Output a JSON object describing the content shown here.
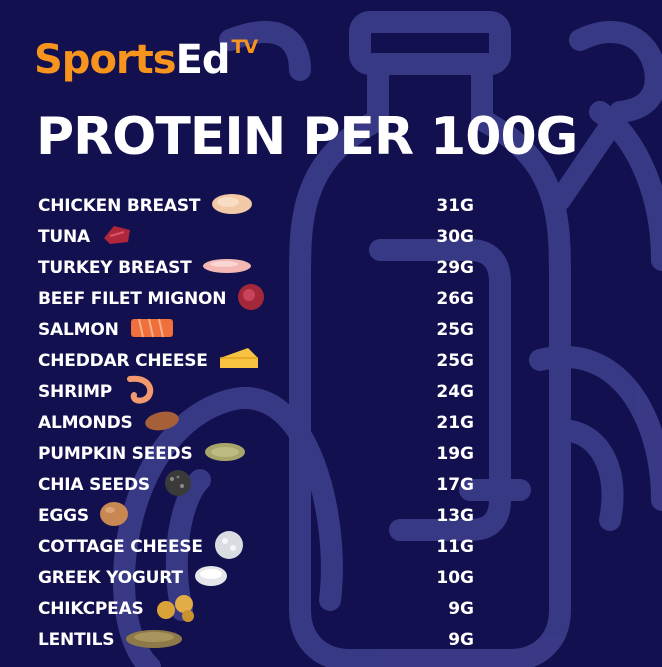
{
  "brand": {
    "name_part1": "Sports",
    "name_part2": "Ed",
    "superscript": "TV"
  },
  "chart_data": {
    "type": "table",
    "title": "PROTEIN PER 100G",
    "rows": [
      {
        "food": "CHICKEN BREAST",
        "value": "31G",
        "icon": "chicken-breast-icon"
      },
      {
        "food": "TUNA",
        "value": "30G",
        "icon": "tuna-icon"
      },
      {
        "food": "TURKEY BREAST",
        "value": "29G",
        "icon": "turkey-breast-icon"
      },
      {
        "food": "BEEF FILET MIGNON",
        "value": "26G",
        "icon": "beef-icon"
      },
      {
        "food": "SALMON",
        "value": "25G",
        "icon": "salmon-icon"
      },
      {
        "food": "CHEDDAR CHEESE",
        "value": "25G",
        "icon": "cheese-icon"
      },
      {
        "food": "SHRIMP",
        "value": "24G",
        "icon": "shrimp-icon"
      },
      {
        "food": "ALMONDS",
        "value": "21G",
        "icon": "almond-icon"
      },
      {
        "food": "PUMPKIN SEEDS",
        "value": "19G",
        "icon": "pumpkin-seed-icon"
      },
      {
        "food": "CHIA SEEDS",
        "value": "17G",
        "icon": "chia-seeds-icon"
      },
      {
        "food": "EGGS",
        "value": "13G",
        "icon": "egg-icon"
      },
      {
        "food": "COTTAGE CHEESE",
        "value": "11G",
        "icon": "cottage-cheese-icon"
      },
      {
        "food": "GREEK YOGURT",
        "value": "10G",
        "icon": "yogurt-icon"
      },
      {
        "food": "CHIKCPEAS",
        "value": "9G",
        "icon": "chickpeas-icon"
      },
      {
        "food": "LENTILS",
        "value": "9G",
        "icon": "lentils-icon"
      }
    ]
  },
  "colors": {
    "background": "#13104f",
    "brand_orange": "#f7941d",
    "text": "#ffffff",
    "outline_art": "#3e3f8c"
  }
}
